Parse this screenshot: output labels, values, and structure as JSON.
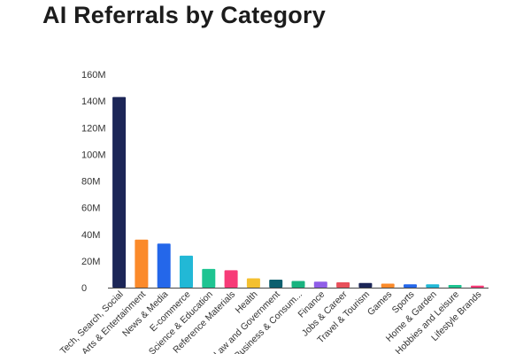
{
  "chart_data": {
    "type": "bar",
    "title": "AI Referrals by Category",
    "xlabel": "",
    "ylabel": "",
    "ylim": [
      0,
      160000000
    ],
    "yticks": [
      0,
      20000000,
      40000000,
      60000000,
      80000000,
      100000000,
      120000000,
      140000000,
      160000000
    ],
    "ytick_labels": [
      "0",
      "20M",
      "40M",
      "60M",
      "80M",
      "100M",
      "120M",
      "140M",
      "160M"
    ],
    "grid": false,
    "legend": "none",
    "categories": [
      "Tech, Search, Social",
      "Arts & Entertainment",
      "News & Media",
      "E-commerce",
      "Science & Education",
      "Reference Materials",
      "Health",
      "Law and Government",
      "Business & Consum...",
      "Finance",
      "Jobs & Career",
      "Travel & Tourism",
      "Games",
      "Sports",
      "Home & Garden",
      "Hobbies and Leisure",
      "Lifestyle Brands"
    ],
    "values": [
      143000000,
      36000000,
      33000000,
      24000000,
      14000000,
      13000000,
      7000000,
      6000000,
      5000000,
      4500000,
      4000000,
      3500000,
      3000000,
      2500000,
      2500000,
      2000000,
      1500000
    ],
    "colors": [
      "#1c2657",
      "#fb8a2a",
      "#2467ea",
      "#22b8d6",
      "#1ec491",
      "#f73b78",
      "#f4c02f",
      "#0d5f6e",
      "#19b37f",
      "#8f5ee8",
      "#e8505b",
      "#1c2657",
      "#fb8a2a",
      "#2467ea",
      "#22b8d6",
      "#1ec491",
      "#f73b78"
    ]
  }
}
